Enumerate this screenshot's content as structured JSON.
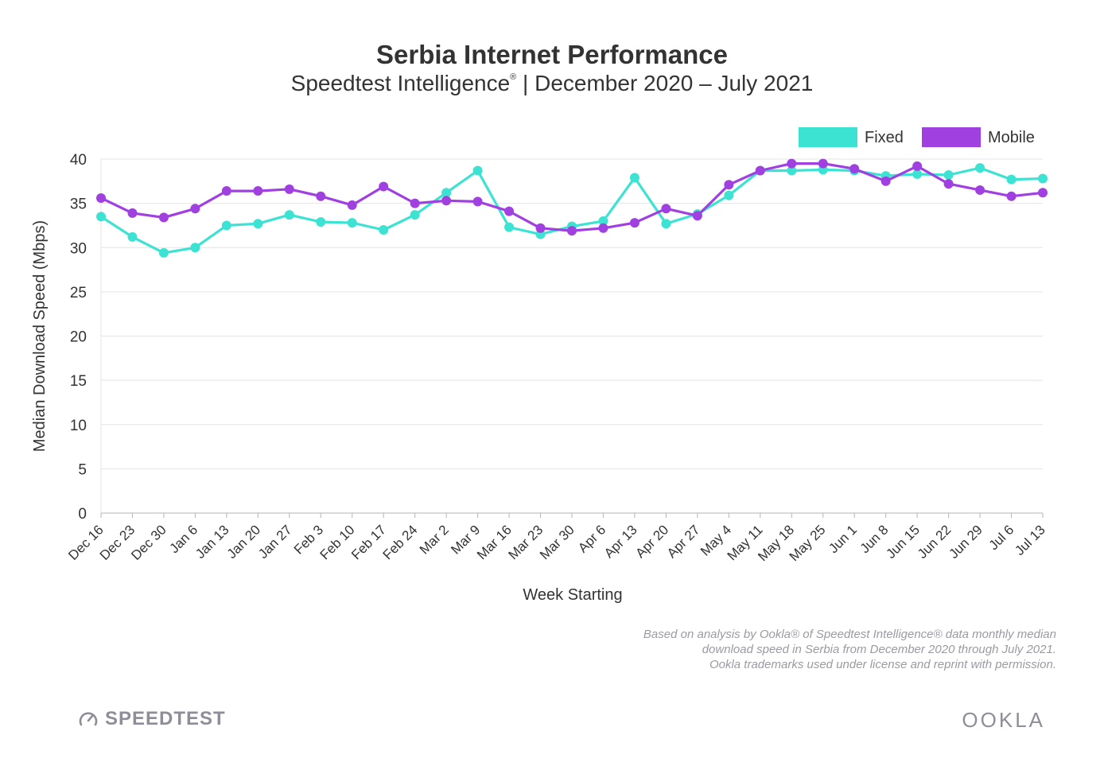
{
  "header": {
    "title": "Serbia Internet Performance",
    "subtitle_pre": "Speedtest Intelligence",
    "subtitle_reg": "®",
    "subtitle_post": " | December 2020 – July 2021"
  },
  "chart_data": {
    "type": "line",
    "title": "Serbia Internet Performance",
    "subtitle": "Speedtest Intelligence® | December 2020 – July 2021",
    "xlabel": "Week Starting",
    "ylabel": "Median Download Speed (Mbps)",
    "ylim": [
      0,
      40
    ],
    "yticks": [
      0,
      5,
      10,
      15,
      20,
      25,
      30,
      35,
      40
    ],
    "grid": true,
    "legend_position": "top-right",
    "categories": [
      "Dec 16",
      "Dec 23",
      "Dec 30",
      "Jan 6",
      "Jan 13",
      "Jan 20",
      "Jan 27",
      "Feb 3",
      "Feb 10",
      "Feb 17",
      "Feb 24",
      "Mar 2",
      "Mar 9",
      "Mar 16",
      "Mar 23",
      "Mar 30",
      "Apr 6",
      "Apr 13",
      "Apr 20",
      "Apr 27",
      "May 4",
      "May 11",
      "May 18",
      "May 25",
      "Jun 1",
      "Jun 8",
      "Jun 15",
      "Jun 22",
      "Jun 29",
      "Jul 6",
      "Jul 13"
    ],
    "series": [
      {
        "name": "Fixed",
        "color": "#3de3d2",
        "values": [
          33.5,
          31.2,
          29.4,
          30.0,
          32.5,
          32.7,
          33.7,
          32.9,
          32.8,
          32.0,
          33.7,
          36.2,
          38.7,
          32.3,
          31.5,
          32.4,
          33.0,
          37.9,
          32.7,
          33.8,
          35.9,
          38.7,
          38.7,
          38.8,
          38.7,
          38.1,
          38.3,
          38.2,
          39.0,
          37.7,
          37.8
        ]
      },
      {
        "name": "Mobile",
        "color": "#a040e0",
        "values": [
          35.6,
          33.9,
          33.4,
          34.4,
          36.4,
          36.4,
          36.6,
          35.8,
          34.8,
          36.9,
          35.0,
          35.3,
          35.2,
          34.1,
          32.2,
          31.9,
          32.2,
          32.8,
          34.4,
          33.6,
          37.1,
          38.7,
          39.5,
          39.5,
          38.9,
          37.5,
          39.2,
          37.2,
          36.5,
          35.8,
          36.2
        ]
      }
    ]
  },
  "footnote": {
    "line1": "Based on analysis by Ookla® of Speedtest Intelligence® data monthly median",
    "line2": "download speed in Serbia from December 2020 through July 2021.",
    "line3": "Ookla trademarks used under license and reprint with permission."
  },
  "branding": {
    "left_logo": "SPEEDTEST",
    "left_icon": "speedometer-icon",
    "right_logo": "OOKLA"
  }
}
